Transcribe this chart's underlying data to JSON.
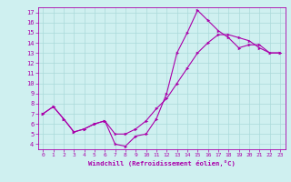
{
  "xlabel": "Windchill (Refroidissement éolien,°C)",
  "bg_color": "#cff0f0",
  "grid_color": "#aadada",
  "line_color": "#aa00aa",
  "xlim": [
    -0.5,
    23.5
  ],
  "ylim": [
    3.5,
    17.5
  ],
  "yticks": [
    4,
    5,
    6,
    7,
    8,
    9,
    10,
    11,
    12,
    13,
    14,
    15,
    16,
    17
  ],
  "xticks": [
    0,
    1,
    2,
    3,
    4,
    5,
    6,
    7,
    8,
    9,
    10,
    11,
    12,
    13,
    14,
    15,
    16,
    17,
    18,
    19,
    20,
    21,
    22,
    23
  ],
  "line1_x": [
    0,
    1,
    2,
    3,
    4,
    5,
    6,
    7,
    8,
    9,
    10,
    11,
    12,
    13,
    14,
    15,
    16,
    17,
    18,
    19,
    20,
    21,
    22,
    23
  ],
  "line1_y": [
    7.0,
    7.7,
    6.5,
    5.2,
    5.5,
    6.0,
    6.3,
    4.0,
    3.8,
    4.8,
    5.0,
    6.5,
    9.0,
    13.0,
    15.0,
    17.2,
    16.2,
    15.2,
    14.5,
    13.5,
    13.8,
    13.8,
    13.0,
    13.0
  ],
  "line2_x": [
    0,
    1,
    2,
    3,
    4,
    5,
    6,
    7,
    8,
    9,
    10,
    11,
    12,
    13,
    14,
    15,
    16,
    17,
    18,
    19,
    20,
    21,
    22,
    23
  ],
  "line2_y": [
    7.0,
    7.7,
    6.5,
    5.2,
    5.5,
    6.0,
    6.3,
    5.0,
    5.0,
    5.5,
    6.3,
    7.5,
    8.5,
    10.0,
    11.5,
    13.0,
    14.0,
    14.8,
    14.8,
    14.5,
    14.2,
    13.5,
    13.0,
    13.0
  ]
}
